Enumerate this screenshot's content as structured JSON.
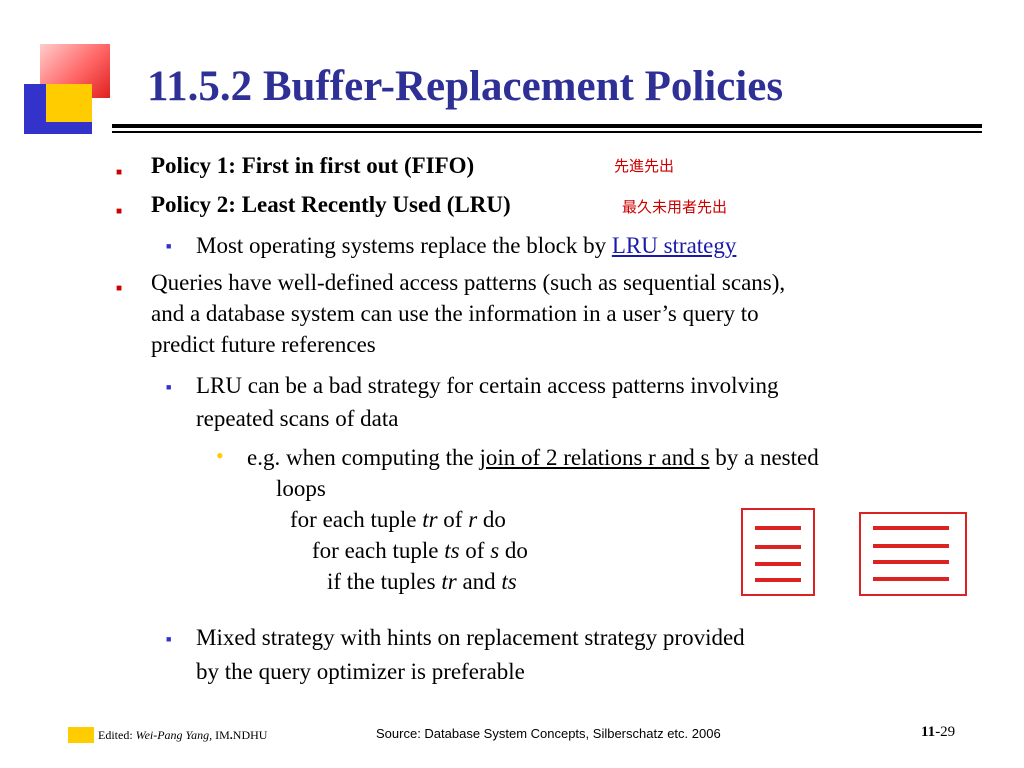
{
  "slide": {
    "title": "11.5.2 Buffer-Replacement Policies",
    "policy1": "Policy 1: First in first out (FIFO)",
    "policy1_cn": "先進先出",
    "policy2": "Policy 2: Least Recently Used (LRU)",
    "policy2_cn": "最久未用者先出",
    "lru_text": "Most operating systems replace the block by ",
    "lru_link": "LRU strategy",
    "queries_line1": "Queries have well-defined access patterns (such as sequential scans),",
    "queries_line2": "and a database system can use the information in a user’s query to",
    "queries_line3": "predict future references",
    "bad_line1": "LRU can be a bad strategy for certain access patterns involving",
    "bad_line2": "repeated scans of data",
    "eg_pre": "e.g. when computing the ",
    "eg_ul": "join of 2 relations r and s",
    "eg_post": " by a nested",
    "eg_line2": "loops",
    "code1_a": "for each tuple ",
    "code1_b": "tr",
    "code1_c": " of ",
    "code1_d": "r",
    "code1_e": " do",
    "code2_a": "for each tuple ",
    "code2_b": "ts",
    "code2_c": " of ",
    "code2_d": "s",
    "code2_e": " do",
    "code3_a": "if the tuples ",
    "code3_b": "tr",
    "code3_c": " and ",
    "code3_d": "ts",
    "code3_e": " ",
    "mixed_line1": "Mixed strategy with hints on replacement strategy provided",
    "mixed_line2": "by the query optimizer is preferable"
  },
  "footer": {
    "edited_label": "Edited: ",
    "author": "Wei-Pang Yang,",
    "org_im": " IM",
    "org_dot": ".",
    "org_ndhu": "NDHU",
    "source": "Source: Database System Concepts, Silberschatz etc. 2006",
    "page_chapter": "11",
    "page_rest": "-29"
  },
  "colors": {
    "title": "#2f3096",
    "bullet_l1": "#cc0000",
    "bullet_l2": "#3333cc",
    "bullet_l3": "#ffcc00",
    "annotation": "#cc0000",
    "diagram": "#dd2222"
  },
  "icons": {
    "bullet_l1": "square-bullet",
    "bullet_l2": "square-bullet",
    "bullet_l3": "round-bullet"
  }
}
